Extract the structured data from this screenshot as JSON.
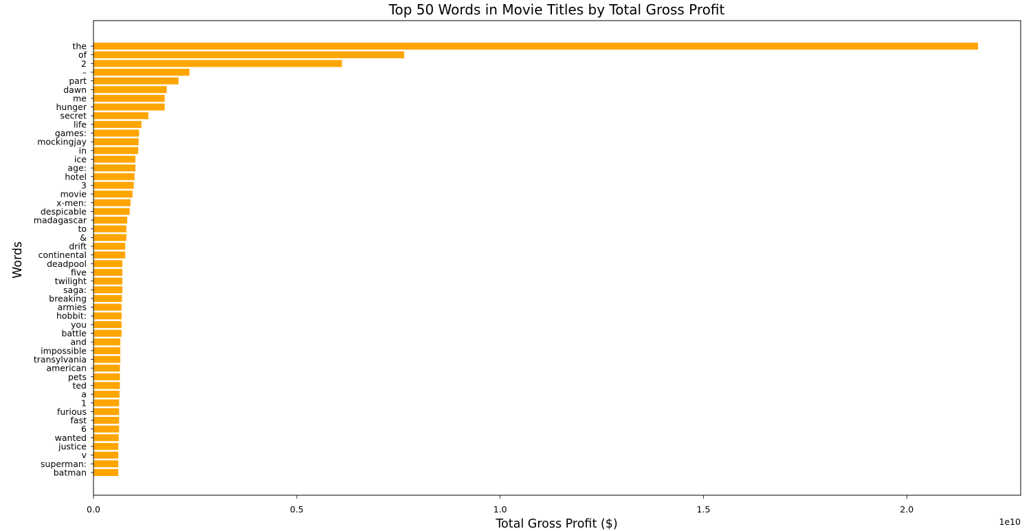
{
  "chart_data": {
    "type": "bar",
    "orientation": "horizontal",
    "title": "Top 50 Words in Movie Titles by Total Gross Profit",
    "xlabel": "Total Gross Profit ($)",
    "ylabel": "Words",
    "x_offset_label": "1e10",
    "xlim": [
      0,
      2.28
    ],
    "x_ticks": [
      0.0,
      0.5,
      1.0,
      1.5,
      2.0
    ],
    "x_tick_labels": [
      "0.0",
      "0.5",
      "1.0",
      "1.5",
      "2.0"
    ],
    "bar_color": "#ffa500",
    "grid": false,
    "categories": [
      "the",
      "of",
      "2",
      "–",
      "part",
      "dawn",
      "me",
      "hunger",
      "secret",
      "life",
      "games:",
      "mockingjay",
      "in",
      "ice",
      "age:",
      "hotel",
      "3",
      "movie",
      "x-men:",
      "despicable",
      "madagascar",
      "to",
      "&",
      "drift",
      "continental",
      "deadpool",
      "five",
      "twilight",
      "saga:",
      "breaking",
      "armies",
      "hobbit:",
      "you",
      "battle",
      "and",
      "impossible",
      "transylvania",
      "american",
      "pets",
      "ted",
      "a",
      "1",
      "furious",
      "fast",
      "6",
      "wanted",
      "justice",
      "v",
      "superman:",
      "batman"
    ],
    "values": [
      2.175,
      0.764,
      0.611,
      0.236,
      0.209,
      0.18,
      0.175,
      0.175,
      0.135,
      0.118,
      0.112,
      0.111,
      0.11,
      0.103,
      0.103,
      0.101,
      0.099,
      0.096,
      0.091,
      0.089,
      0.083,
      0.081,
      0.081,
      0.078,
      0.078,
      0.071,
      0.071,
      0.071,
      0.071,
      0.07,
      0.069,
      0.069,
      0.069,
      0.069,
      0.066,
      0.066,
      0.066,
      0.065,
      0.065,
      0.065,
      0.064,
      0.063,
      0.063,
      0.063,
      0.063,
      0.062,
      0.061,
      0.061,
      0.061,
      0.061
    ]
  }
}
